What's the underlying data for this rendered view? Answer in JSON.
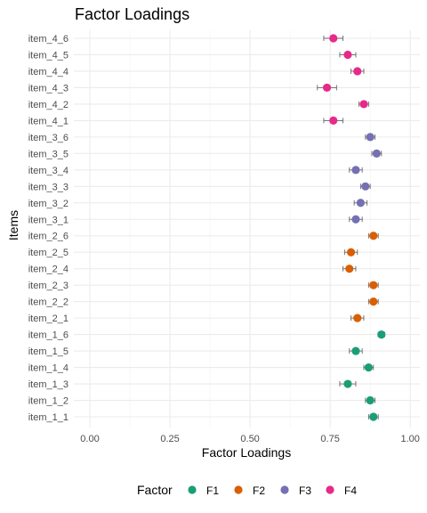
{
  "chart_data": {
    "type": "scatter",
    "title": "Factor Loadings",
    "xlabel": "Factor Loadings",
    "ylabel": "Items",
    "xlim": [
      -0.05,
      1.03
    ],
    "x_ticks": [
      "0.00",
      "0.25",
      "0.50",
      "0.75",
      "1.00"
    ],
    "x_tick_values": [
      0,
      0.25,
      0.5,
      0.75,
      1.0
    ],
    "grid": true,
    "legend": {
      "title": "Factor",
      "position": "bottom",
      "entries": [
        {
          "name": "F1",
          "color": "#1b9e77"
        },
        {
          "name": "F2",
          "color": "#d95f02"
        },
        {
          "name": "F3",
          "color": "#7570b3"
        },
        {
          "name": "F4",
          "color": "#e7298a"
        }
      ]
    },
    "points": [
      {
        "item": "item_1_1",
        "factor": "F1",
        "value": 0.885,
        "lower": 0.87,
        "upper": 0.9
      },
      {
        "item": "item_1_2",
        "factor": "F1",
        "value": 0.875,
        "lower": 0.86,
        "upper": 0.89
      },
      {
        "item": "item_1_3",
        "factor": "F1",
        "value": 0.805,
        "lower": 0.78,
        "upper": 0.83
      },
      {
        "item": "item_1_4",
        "factor": "F1",
        "value": 0.87,
        "lower": 0.855,
        "upper": 0.885
      },
      {
        "item": "item_1_5",
        "factor": "F1",
        "value": 0.83,
        "lower": 0.81,
        "upper": 0.85
      },
      {
        "item": "item_1_6",
        "factor": "F1",
        "value": 0.91,
        "lower": 0.9,
        "upper": 0.92
      },
      {
        "item": "item_2_1",
        "factor": "F2",
        "value": 0.835,
        "lower": 0.815,
        "upper": 0.855
      },
      {
        "item": "item_2_2",
        "factor": "F2",
        "value": 0.885,
        "lower": 0.87,
        "upper": 0.9
      },
      {
        "item": "item_2_3",
        "factor": "F2",
        "value": 0.885,
        "lower": 0.87,
        "upper": 0.9
      },
      {
        "item": "item_2_4",
        "factor": "F2",
        "value": 0.81,
        "lower": 0.79,
        "upper": 0.83
      },
      {
        "item": "item_2_5",
        "factor": "F2",
        "value": 0.815,
        "lower": 0.795,
        "upper": 0.835
      },
      {
        "item": "item_2_6",
        "factor": "F2",
        "value": 0.885,
        "lower": 0.87,
        "upper": 0.9
      },
      {
        "item": "item_3_1",
        "factor": "F3",
        "value": 0.83,
        "lower": 0.81,
        "upper": 0.85
      },
      {
        "item": "item_3_2",
        "factor": "F3",
        "value": 0.845,
        "lower": 0.825,
        "upper": 0.865
      },
      {
        "item": "item_3_3",
        "factor": "F3",
        "value": 0.86,
        "lower": 0.845,
        "upper": 0.875
      },
      {
        "item": "item_3_4",
        "factor": "F3",
        "value": 0.83,
        "lower": 0.81,
        "upper": 0.85
      },
      {
        "item": "item_3_5",
        "factor": "F3",
        "value": 0.895,
        "lower": 0.88,
        "upper": 0.91
      },
      {
        "item": "item_3_6",
        "factor": "F3",
        "value": 0.875,
        "lower": 0.86,
        "upper": 0.89
      },
      {
        "item": "item_4_1",
        "factor": "F4",
        "value": 0.76,
        "lower": 0.73,
        "upper": 0.79
      },
      {
        "item": "item_4_2",
        "factor": "F4",
        "value": 0.855,
        "lower": 0.84,
        "upper": 0.87
      },
      {
        "item": "item_4_3",
        "factor": "F4",
        "value": 0.74,
        "lower": 0.71,
        "upper": 0.77
      },
      {
        "item": "item_4_4",
        "factor": "F4",
        "value": 0.835,
        "lower": 0.815,
        "upper": 0.855
      },
      {
        "item": "item_4_5",
        "factor": "F4",
        "value": 0.805,
        "lower": 0.78,
        "upper": 0.83
      },
      {
        "item": "item_4_6",
        "factor": "F4",
        "value": 0.76,
        "lower": 0.73,
        "upper": 0.79
      }
    ]
  }
}
